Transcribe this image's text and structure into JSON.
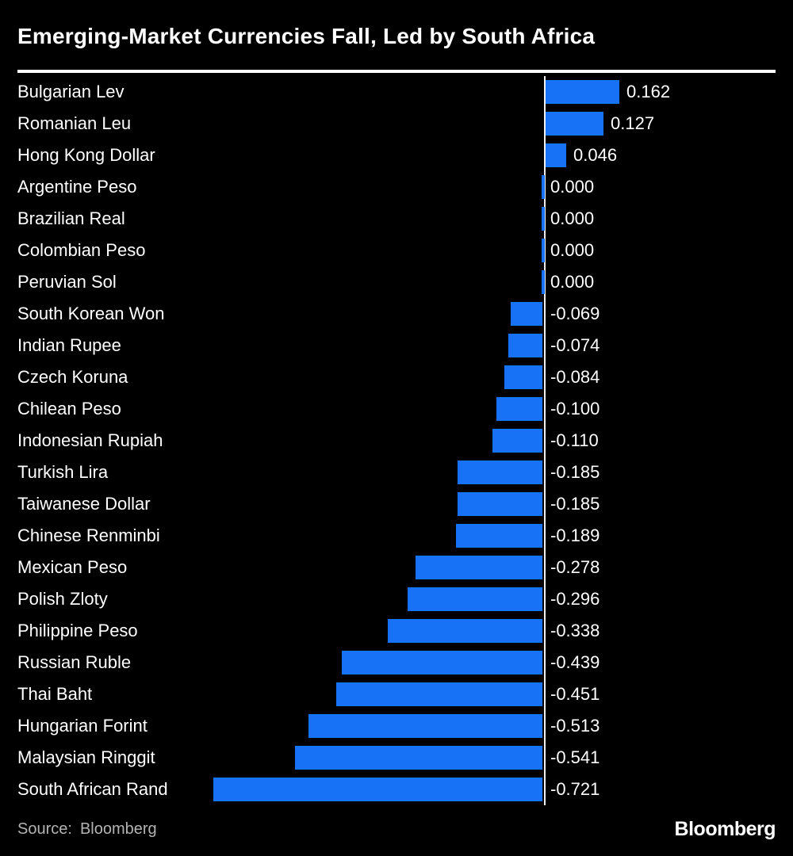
{
  "title": "Emerging-Market Currencies Fall, Led by South Africa",
  "source": {
    "label": "Source:",
    "value": "Bloomberg"
  },
  "brand": "Bloomberg",
  "colors": {
    "background": "#000000",
    "bar": "#1772f5",
    "text": "#ffffff",
    "zero_line": "#ffffff",
    "source_text": "#b3b3b3"
  },
  "chart_data": {
    "type": "bar",
    "orientation": "horizontal",
    "title": "Emerging-Market Currencies Fall, Led by South Africa",
    "xlabel": "",
    "ylabel": "",
    "xlim": [
      -0.75,
      0.2
    ],
    "grid": false,
    "legend_position": "none",
    "zero_baseline": true,
    "value_decimals": 3,
    "categories": [
      "Bulgarian Lev",
      "Romanian Leu",
      "Hong Kong Dollar",
      "Argentine Peso",
      "Brazilian Real",
      "Colombian Peso",
      "Peruvian Sol",
      "South Korean Won",
      "Indian Rupee",
      "Czech Koruna",
      "Chilean Peso",
      "Indonesian Rupiah",
      "Turkish Lira",
      "Taiwanese Dollar",
      "Chinese Renminbi",
      "Mexican Peso",
      "Polish Zloty",
      "Philippine Peso",
      "Russian Ruble",
      "Thai Baht",
      "Hungarian Forint",
      "Malaysian Ringgit",
      "South African Rand"
    ],
    "values": [
      0.162,
      0.127,
      0.046,
      0.0,
      0.0,
      0.0,
      0.0,
      -0.069,
      -0.074,
      -0.084,
      -0.1,
      -0.11,
      -0.185,
      -0.185,
      -0.189,
      -0.278,
      -0.296,
      -0.338,
      -0.439,
      -0.451,
      -0.513,
      -0.541,
      -0.721
    ]
  }
}
